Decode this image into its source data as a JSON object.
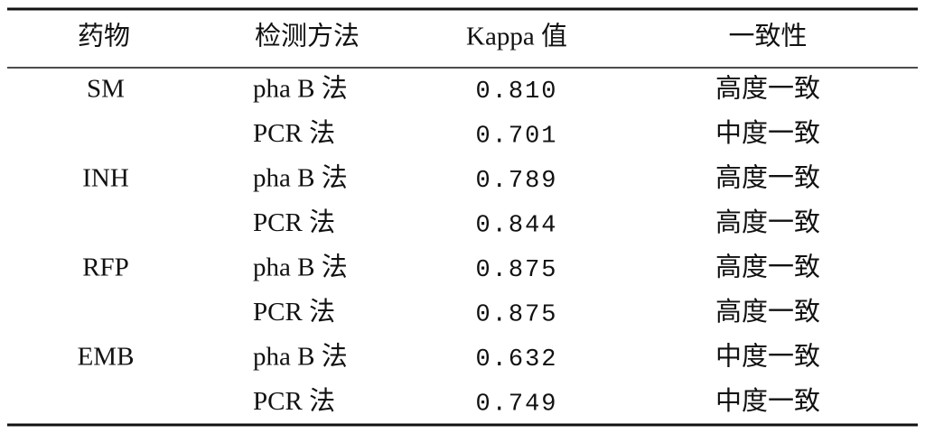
{
  "table": {
    "header": [
      "药物",
      "检测方法",
      "Kappa 值",
      "一致性"
    ],
    "groups": [
      {
        "drug": "SM",
        "rows": [
          {
            "method": "pha B 法",
            "kappa": "0.810",
            "agreement": "高度一致"
          },
          {
            "method": "PCR 法",
            "kappa": "0.701",
            "agreement": "中度一致"
          }
        ]
      },
      {
        "drug": "INH",
        "rows": [
          {
            "method": "pha B 法",
            "kappa": "0.789",
            "agreement": "高度一致"
          },
          {
            "method": "PCR 法",
            "kappa": "0.844",
            "agreement": "高度一致"
          }
        ]
      },
      {
        "drug": "RFP",
        "rows": [
          {
            "method": "pha B 法",
            "kappa": "0.875",
            "agreement": "高度一致"
          },
          {
            "method": "PCR 法",
            "kappa": "0.875",
            "agreement": "高度一致"
          }
        ]
      },
      {
        "drug": "EMB",
        "rows": [
          {
            "method": "pha B 法",
            "kappa": "0.632",
            "agreement": "中度一致"
          },
          {
            "method": "PCR 法",
            "kappa": "0.749",
            "agreement": "中度一致"
          }
        ]
      }
    ]
  }
}
